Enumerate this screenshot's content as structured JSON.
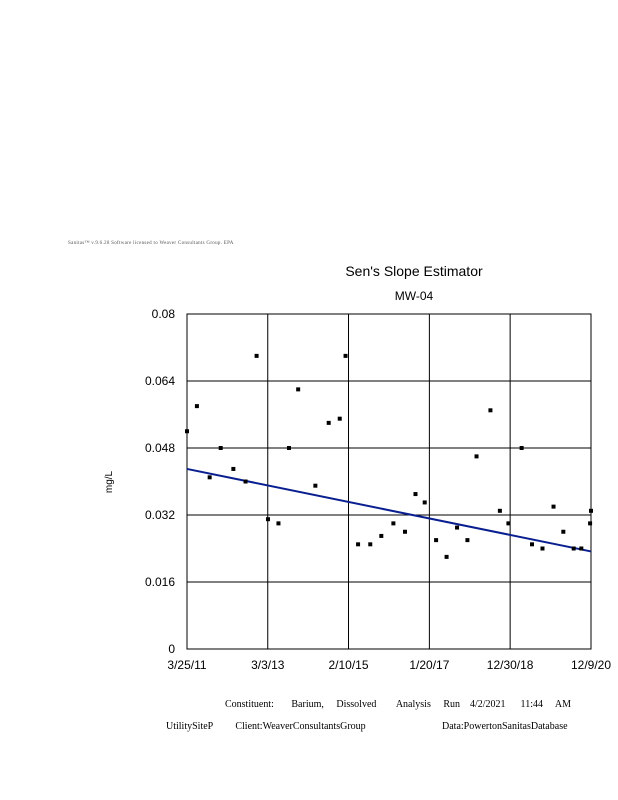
{
  "header": {
    "banner": "Sanitas™ v.9.6.28 Software licensed to Weaver Consultants Group. EPA"
  },
  "footer": {
    "line1": "Constituent:       Barium,     Dissolved        Analysis     Run    4/2/2021      11:44     AM",
    "line2_left": "UtilitySiteP         Client:WeaverConsultantsGroup",
    "line2_right": "Data:PowertonSanitasDatabase"
  },
  "colors": {
    "trend": "#0a1f8f",
    "points": "#000000",
    "grid": "#000000"
  },
  "chart_data": {
    "type": "scatter",
    "title": "Sen's Slope Estimator",
    "subtitle": "MW-04",
    "ylabel": "mg/L",
    "xlabel": "",
    "xlim": [
      "2011-03-25",
      "2020-12-09"
    ],
    "ylim": [
      0,
      0.08
    ],
    "y_ticks": [
      0,
      0.016,
      0.032,
      0.048,
      0.064,
      0.08
    ],
    "y_tick_labels": [
      "0",
      "0.016",
      "0.032",
      "0.048",
      "0.064",
      "0.08"
    ],
    "x_ticks": [
      "2011-03-25",
      "2013-03-03",
      "2015-02-10",
      "2017-01-20",
      "2018-12-30",
      "2020-12-09"
    ],
    "x_tick_labels": [
      "3/25/11",
      "3/3/13",
      "2/10/15",
      "1/20/17",
      "12/30/18",
      "12/9/20"
    ],
    "grid": true,
    "series": [
      {
        "points": [
          [
            "2011-03-25",
            0.052
          ],
          [
            "2011-06-20",
            0.058
          ],
          [
            "2011-10-10",
            0.041
          ],
          [
            "2012-01-15",
            0.048
          ],
          [
            "2012-05-05",
            0.043
          ],
          [
            "2012-08-20",
            0.04
          ],
          [
            "2012-11-25",
            0.07
          ],
          [
            "2013-03-05",
            0.031
          ],
          [
            "2013-06-05",
            0.03
          ],
          [
            "2013-09-05",
            0.048
          ],
          [
            "2013-11-25",
            0.062
          ],
          [
            "2014-04-25",
            0.039
          ],
          [
            "2014-08-20",
            0.054
          ],
          [
            "2014-11-25",
            0.055
          ],
          [
            "2015-01-15",
            0.07
          ],
          [
            "2015-05-05",
            0.025
          ],
          [
            "2015-08-20",
            0.025
          ],
          [
            "2015-11-25",
            0.027
          ],
          [
            "2016-03-10",
            0.03
          ],
          [
            "2016-06-20",
            0.028
          ],
          [
            "2016-09-20",
            0.037
          ],
          [
            "2016-12-10",
            0.035
          ],
          [
            "2017-03-20",
            0.026
          ],
          [
            "2017-06-20",
            0.022
          ],
          [
            "2017-09-20",
            0.029
          ],
          [
            "2017-12-20",
            0.026
          ],
          [
            "2018-03-10",
            0.046
          ],
          [
            "2018-07-10",
            0.057
          ],
          [
            "2018-10-01",
            0.033
          ],
          [
            "2018-12-15",
            0.03
          ],
          [
            "2019-04-10",
            0.048
          ],
          [
            "2019-07-10",
            0.025
          ],
          [
            "2019-10-10",
            0.024
          ],
          [
            "2020-01-15",
            0.034
          ],
          [
            "2020-04-10",
            0.028
          ],
          [
            "2020-07-10",
            0.024
          ],
          [
            "2020-09-15",
            0.024
          ],
          [
            "2020-12-01",
            0.03
          ],
          [
            "2020-12-09",
            0.033
          ]
        ]
      }
    ],
    "trend_line": {
      "start": [
        "2011-03-25",
        0.043
      ],
      "end": [
        "2020-12-09",
        0.0233
      ]
    }
  }
}
